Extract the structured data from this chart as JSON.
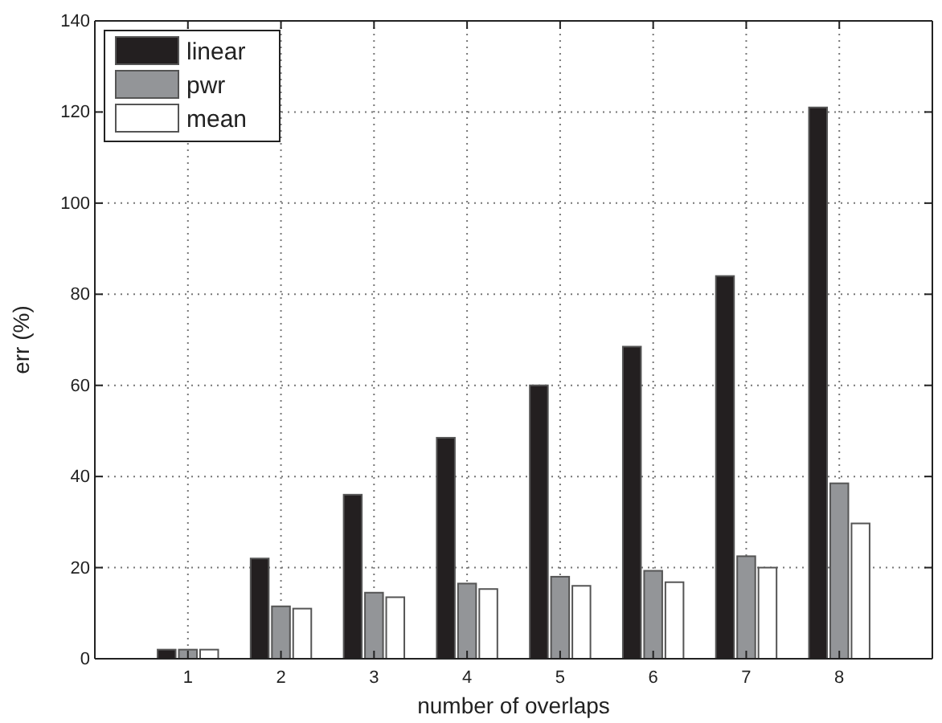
{
  "chart_data": {
    "type": "bar",
    "xlabel": "number of overlaps",
    "ylabel": "err (%)",
    "x": [
      1,
      2,
      3,
      4,
      5,
      6,
      7,
      8
    ],
    "xlim": [
      0,
      9
    ],
    "xticks": [
      1,
      2,
      3,
      4,
      5,
      6,
      7,
      8
    ],
    "ylim": [
      0,
      140
    ],
    "yticks": [
      0,
      20,
      40,
      60,
      80,
      100,
      120,
      140
    ],
    "grid": true,
    "legend": "top left",
    "series": [
      {
        "name": "linear",
        "color": "#231f20",
        "values": [
          2,
          22,
          36,
          48.5,
          60,
          68.5,
          84,
          121
        ]
      },
      {
        "name": "pwr",
        "color": "#939598",
        "values": [
          2,
          11.5,
          14.5,
          16.5,
          18,
          19.3,
          22.5,
          38.5
        ]
      },
      {
        "name": "mean",
        "color": "#ffffff",
        "values": [
          2,
          11,
          13.5,
          15.3,
          16,
          16.8,
          20,
          29.7
        ]
      }
    ]
  }
}
